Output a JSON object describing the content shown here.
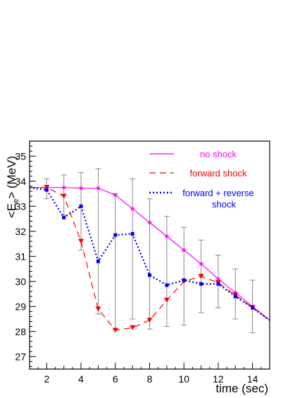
{
  "chart_data": {
    "type": "line",
    "title": "",
    "xlabel": "time (sec)",
    "ylabel_parts": {
      "open": "<E",
      "sub": "e",
      "close": "> (MeV)"
    },
    "xlim": [
      1,
      15
    ],
    "ylim": [
      26.5,
      35.6
    ],
    "xticks": [
      2,
      4,
      6,
      8,
      10,
      12,
      14
    ],
    "yticks": [
      27,
      28,
      29,
      30,
      31,
      32,
      33,
      34,
      35
    ],
    "grid": false,
    "legend_position": "top-right",
    "series": [
      {
        "name": "no shock",
        "color": "#ff00ff",
        "line_style": "solid",
        "marker": "star",
        "x": [
          1,
          2,
          3,
          4,
          5,
          6,
          7,
          8,
          9,
          10,
          11,
          12,
          13,
          14,
          15
        ],
        "y": [
          33.75,
          33.75,
          33.75,
          33.72,
          33.72,
          33.45,
          32.9,
          32.35,
          31.8,
          31.25,
          30.7,
          30.1,
          29.55,
          29.0,
          28.45
        ]
      },
      {
        "name": "forward shock",
        "color": "#ff0000",
        "line_style": "dashed",
        "marker": "triangle-down",
        "x": [
          1,
          2,
          3,
          4,
          5,
          6,
          7,
          8,
          9,
          10,
          11,
          12,
          13,
          14,
          15
        ],
        "y": [
          33.75,
          33.75,
          33.4,
          31.6,
          28.9,
          28.05,
          28.15,
          28.45,
          29.25,
          30.0,
          30.2,
          29.95,
          29.45,
          28.95,
          28.45
        ]
      },
      {
        "name": "forward + reverse shock",
        "name_lines": [
          "forward + reverse",
          "shock"
        ],
        "color": "#0000ff",
        "line_style": "dotted",
        "marker": "square",
        "x": [
          1,
          2,
          3,
          4,
          5,
          6,
          7,
          8,
          9,
          10,
          11,
          12,
          13,
          14,
          15
        ],
        "y": [
          33.75,
          33.65,
          32.55,
          33.0,
          30.8,
          31.85,
          31.9,
          30.25,
          29.85,
          30.05,
          29.9,
          29.9,
          29.4,
          28.95,
          28.45
        ]
      }
    ],
    "error_bars": {
      "color": "#888888",
      "x": [
        2,
        3,
        4,
        5,
        6,
        7,
        8,
        9,
        10,
        11,
        12,
        13,
        14
      ],
      "y": [
        33.7,
        33.45,
        32.8,
        31.6,
        30.8,
        31.3,
        30.7,
        30.4,
        30.2,
        30.2,
        30.0,
        29.5,
        29.0
      ],
      "err": [
        0.4,
        0.8,
        1.55,
        2.9,
        2.7,
        2.8,
        2.6,
        2.2,
        1.95,
        1.45,
        1.05,
        1.0,
        1.05
      ]
    }
  }
}
